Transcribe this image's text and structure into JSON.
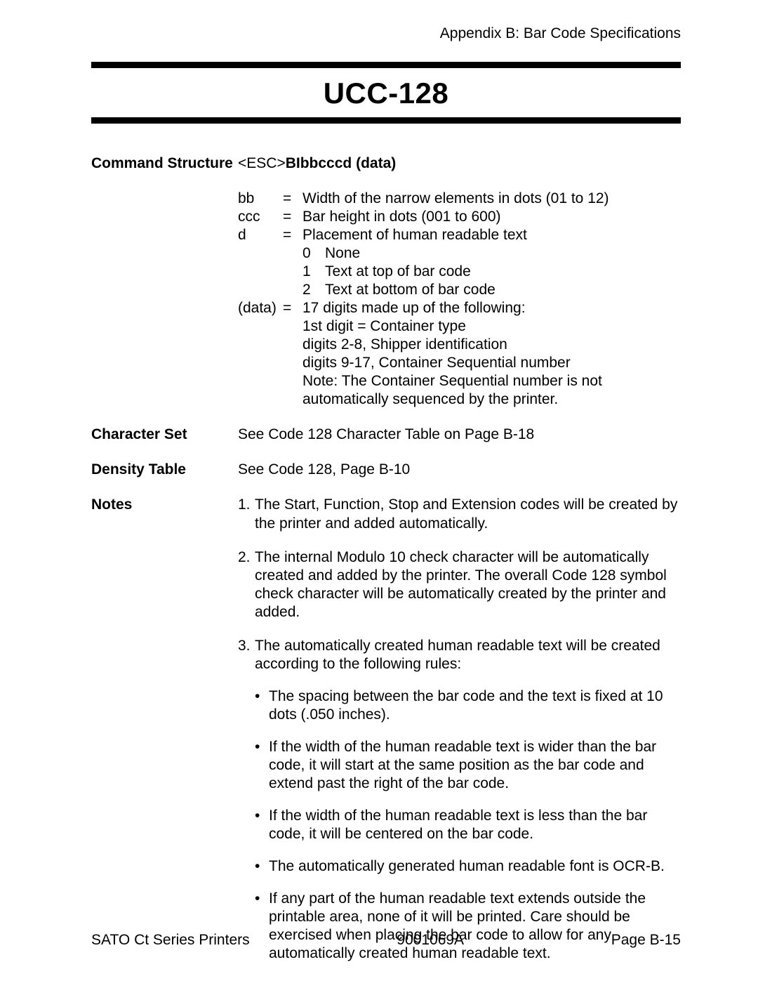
{
  "header": {
    "appendix": "Appendix B: Bar Code Specifications"
  },
  "title": "UCC-128",
  "command_structure": {
    "label": "Command Structure",
    "esc_prefix": "<ESC>",
    "esc_bold": "BIbbcccd (data)",
    "params": {
      "bb": {
        "key": "bb",
        "eq": "=",
        "desc": "Width of the narrow elements in dots (01 to 12)"
      },
      "ccc": {
        "key": "ccc",
        "eq": "=",
        "desc": "Bar height in dots (001 to 600)"
      },
      "d": {
        "key": "d",
        "eq": "=",
        "desc": "Placement of human readable text"
      },
      "d_opts": {
        "o0": {
          "n": "0",
          "t": "None"
        },
        "o1": {
          "n": "1",
          "t": "Text at top of bar code"
        },
        "o2": {
          "n": "2",
          "t": "Text at bottom of bar code"
        }
      },
      "data": {
        "key": "(data)",
        "eq": "=",
        "desc": "17 digits made up of the following:"
      },
      "data_lines": {
        "l1": "1st digit = Container type",
        "l2": "digits 2-8, Shipper identification",
        "l3": "digits 9-17, Container Sequential number",
        "l4": "Note: The Container Sequential number is not automatically sequenced by the printer."
      }
    }
  },
  "character_set": {
    "label": "Character Set",
    "value": "See Code 128 Character Table on Page B-18"
  },
  "density_table": {
    "label": "Density Table",
    "value": "See Code 128, Page B-10"
  },
  "notes": {
    "label": "Notes",
    "items": {
      "n1": {
        "num": "1.",
        "text": "The Start, Function, Stop and Extension codes will be created by the printer and added automatically."
      },
      "n2": {
        "num": "2.",
        "text": "The internal Modulo 10 check character will be automatically created and added by the printer. The overall Code 128 symbol check character will be automatically created by the printer and added."
      },
      "n3": {
        "num": "3.",
        "text": "The automatically created human readable text will be created according to the following rules:"
      }
    },
    "bullets": {
      "b1": "The spacing between the bar code and the text is fixed at 10 dots (.050 inches).",
      "b2": "If the width of the human readable text is wider than the bar code, it will start at the same position as the bar code and extend past the right of the bar code.",
      "b3": "If the width of the human readable text is less than the bar code, it will be centered on the bar code.",
      "b4": "The automatically generated human readable font is OCR-B.",
      "b5": "If any part of the human readable text extends outside the printable area, none of it will be printed. Care should be exercised when placing the bar code to allow for any automatically created human readable text."
    }
  },
  "footer": {
    "left": "SATO Ct Series Printers",
    "center": "9001069A",
    "right": "Page B-15"
  }
}
